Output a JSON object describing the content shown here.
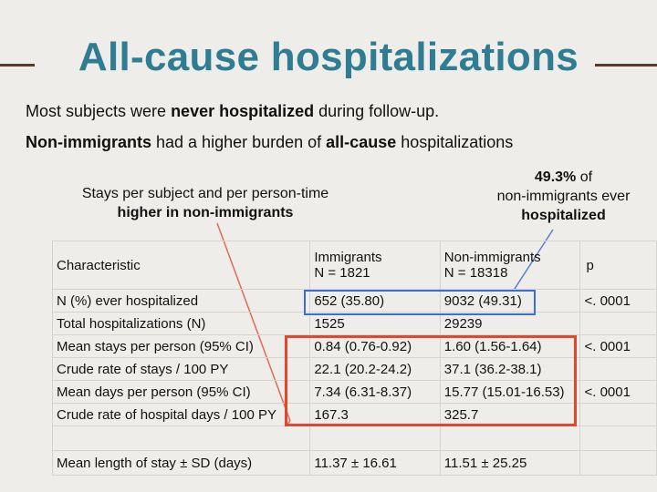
{
  "slide": {
    "title": "All-cause hospitalizations",
    "line1": {
      "pre": "Most subjects were ",
      "bold": "never hospitalized",
      "post": " during follow-up."
    },
    "line2": {
      "bold1": "Non-immigrants",
      "mid": " had a higher burden of ",
      "bold2": "all-cause",
      "post": " hospitalizations"
    }
  },
  "callouts": {
    "left": {
      "line1": "Stays per subject and per person-time",
      "line2": "higher in non-immigrants"
    },
    "right": {
      "line1": "49.3%",
      "line1b": " of",
      "line2": "non-immigrants ever",
      "line3": "hospitalized"
    }
  },
  "table": {
    "header": {
      "characteristic": "Characteristic",
      "imm_label": "Immigrants",
      "imm_n": "N = 1821",
      "non_label": "Non-immigrants",
      "non_n": "N = 18318",
      "p": "p"
    },
    "rows": [
      {
        "label": "N (%) ever hospitalized",
        "imm": "652 (35.80)",
        "non": "9032 (49.31)",
        "p": "<. 0001"
      },
      {
        "label": "Total hospitalizations (N)",
        "imm": "1525",
        "non": "29239",
        "p": ""
      },
      {
        "label": "Mean stays per person (95% CI)",
        "imm": "0.84 (0.76-0.92)",
        "non": "1.60 (1.56-1.64)",
        "p": "<. 0001"
      },
      {
        "label": "Crude rate of stays / 100 PY",
        "imm": "22.1 (20.2-24.2)",
        "non": "37.1 (36.2-38.1)",
        "p": ""
      },
      {
        "label": "Mean days per person (95% CI)",
        "imm": "7.34 (6.31-8.37)",
        "non": "15.77 (15.01-16.53)",
        "p": "<. 0001"
      },
      {
        "label": "Crude rate of hospital days / 100 PY",
        "imm": "167.3",
        "non": "325.7",
        "p": ""
      },
      {
        "label": "",
        "imm": "",
        "non": "",
        "p": ""
      },
      {
        "label": "Mean length of stay ± SD (days)",
        "imm": "11.37 ± 16.61",
        "non": "11.51 ± 25.25",
        "p": ""
      }
    ]
  },
  "colors": {
    "title": "#2e7d93",
    "rule": "#5a3a2a",
    "highlight_red": "#e2462c",
    "highlight_blue": "#3a6fd8",
    "arrow": "#e06a5a"
  }
}
